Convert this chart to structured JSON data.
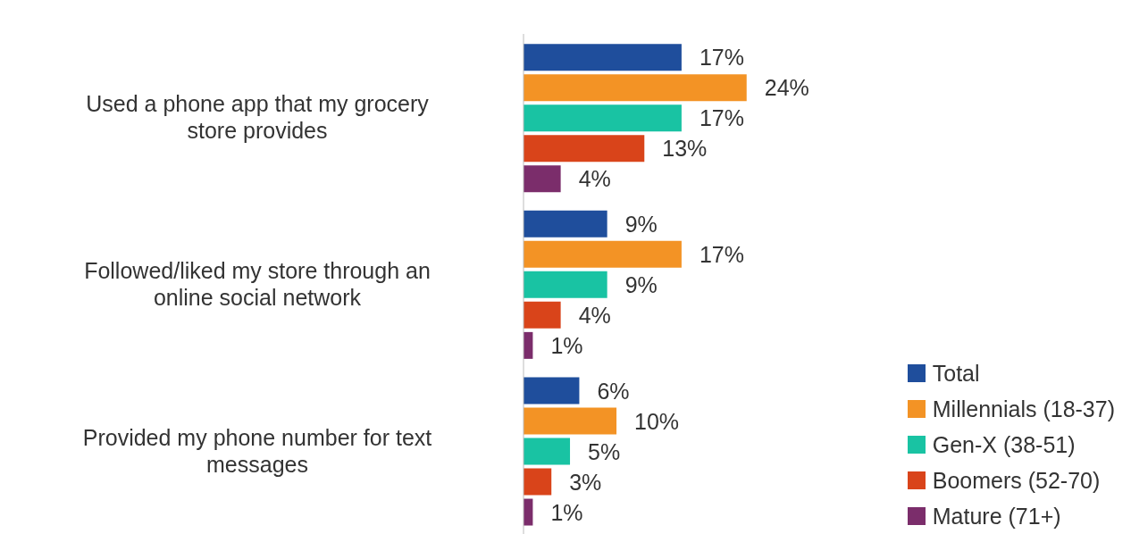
{
  "chart_data": {
    "type": "bar",
    "orientation": "horizontal",
    "categories": [
      "Used a phone app that my grocery store provides",
      "Followed/liked my store through an online social network",
      "Provided my phone number for text messages"
    ],
    "series": [
      {
        "name": "Total",
        "color": "#1f4e9c",
        "values": [
          17,
          9,
          6
        ],
        "value_labels": [
          "17%",
          "9%",
          "6%"
        ]
      },
      {
        "name": "Millennials (18-37)",
        "color": "#f39325",
        "values": [
          24,
          17,
          10
        ],
        "value_labels": [
          "24%",
          "17%",
          "10%"
        ]
      },
      {
        "name": "Gen-X (38-51)",
        "color": "#19c3a3",
        "values": [
          17,
          9,
          5
        ],
        "value_labels": [
          "17%",
          "9%",
          "5%"
        ]
      },
      {
        "name": "Boomers (52-70)",
        "color": "#d9441a",
        "values": [
          13,
          4,
          3
        ],
        "value_labels": [
          "13%",
          "4%",
          "3%"
        ]
      },
      {
        "name": "Mature (71+)",
        "color": "#7b2d6b",
        "values": [
          4,
          1,
          1
        ],
        "value_labels": [
          "4%",
          "1%",
          "1%"
        ]
      }
    ],
    "legend": "bottom right",
    "grid": false,
    "tick_labels": "y"
  }
}
